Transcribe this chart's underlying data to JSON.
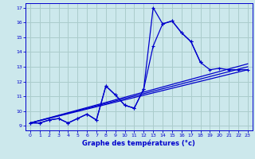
{
  "xlabel": "Graphe des températures (°c)",
  "bg_color": "#cce8ec",
  "line_color": "#0000cc",
  "grid_color": "#aacccc",
  "xlim": [
    -0.5,
    23.5
  ],
  "ylim": [
    8.7,
    17.3
  ],
  "yticks": [
    9,
    10,
    11,
    12,
    13,
    14,
    15,
    16,
    17
  ],
  "xticks": [
    0,
    1,
    2,
    3,
    4,
    5,
    6,
    7,
    8,
    9,
    10,
    11,
    12,
    13,
    14,
    15,
    16,
    17,
    18,
    19,
    20,
    21,
    22,
    23
  ],
  "curve1_x": [
    0,
    1,
    2,
    3,
    4,
    5,
    6,
    7,
    8,
    9,
    10,
    11,
    12,
    13,
    14,
    15,
    16,
    17,
    18
  ],
  "curve1_y": [
    9.2,
    9.2,
    9.4,
    9.5,
    9.2,
    9.5,
    9.8,
    9.4,
    11.7,
    11.1,
    10.4,
    10.2,
    11.5,
    17.0,
    15.9,
    16.1,
    15.3,
    14.7,
    13.3
  ],
  "curve2_x": [
    0,
    1,
    2,
    3,
    4,
    5,
    6,
    7,
    8,
    9,
    10,
    11,
    12,
    13,
    14,
    15,
    16,
    17,
    18,
    19,
    20,
    21,
    22,
    23
  ],
  "curve2_y": [
    9.2,
    9.2,
    9.4,
    9.5,
    9.2,
    9.5,
    9.8,
    9.4,
    11.7,
    11.1,
    10.4,
    10.2,
    11.5,
    14.4,
    15.9,
    16.1,
    15.3,
    14.7,
    13.3,
    12.8,
    12.9,
    12.8,
    12.8,
    12.8
  ],
  "trend1_x": [
    0,
    23
  ],
  "trend1_y": [
    9.2,
    12.8
  ],
  "trend2_x": [
    0,
    23
  ],
  "trend2_y": [
    9.2,
    13.0
  ],
  "trend3_x": [
    0,
    23
  ],
  "trend3_y": [
    9.2,
    13.2
  ]
}
